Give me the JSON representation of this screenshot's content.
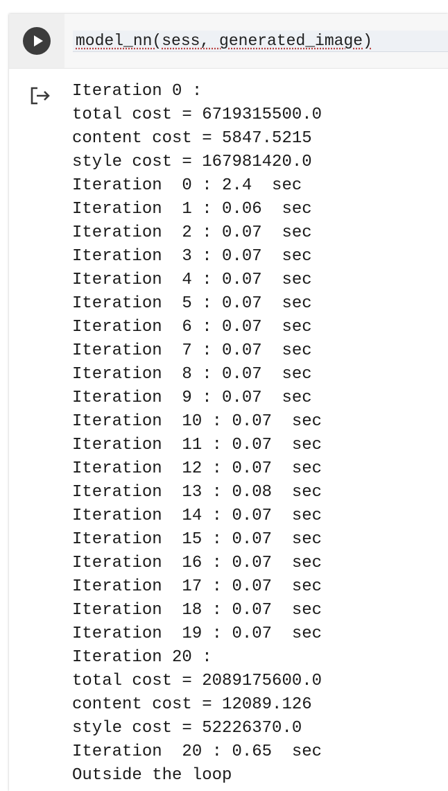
{
  "code_cell": {
    "source": "model_nn(sess, generated_image)"
  },
  "output_lines": [
    "Iteration 0 :",
    "total cost = 6719315500.0",
    "content cost = 5847.5215",
    "style cost = 167981420.0",
    "Iteration  0 : 2.4  sec",
    "Iteration  1 : 0.06  sec",
    "Iteration  2 : 0.07  sec",
    "Iteration  3 : 0.07  sec",
    "Iteration  4 : 0.07  sec",
    "Iteration  5 : 0.07  sec",
    "Iteration  6 : 0.07  sec",
    "Iteration  7 : 0.07  sec",
    "Iteration  8 : 0.07  sec",
    "Iteration  9 : 0.07  sec",
    "Iteration  10 : 0.07  sec",
    "Iteration  11 : 0.07  sec",
    "Iteration  12 : 0.07  sec",
    "Iteration  13 : 0.08  sec",
    "Iteration  14 : 0.07  sec",
    "Iteration  15 : 0.07  sec",
    "Iteration  16 : 0.07  sec",
    "Iteration  17 : 0.07  sec",
    "Iteration  18 : 0.07  sec",
    "Iteration  19 : 0.07  sec",
    "Iteration 20 :",
    "total cost = 2089175600.0",
    "content cost = 12089.126",
    "style cost = 52226370.0",
    "Iteration  20 : 0.65  sec",
    "Outside the loop"
  ],
  "icons": {
    "run": "play-icon",
    "output": "output-arrow-icon"
  }
}
